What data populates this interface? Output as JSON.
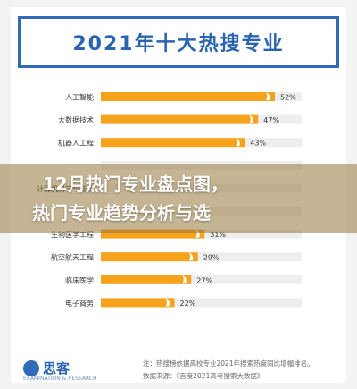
{
  "title": "2021年十大热搜专业",
  "overlay": {
    "line1": "12月热门专业盘点图，",
    "line2": "热门专业趋势分析与选"
  },
  "footer": {
    "logo": "思客",
    "logo_sub": "EXAMINATION & RESEARCH",
    "note1": "注：热搜榜依据高校专业2021年搜索热度同比增幅排名。",
    "note2": "数据来源：《百度2021高考搜索大数据》"
  },
  "colors": {
    "bar": "#f7a21b",
    "bar_light": "#fbcf86",
    "track": "#eeeeee",
    "title": "#2a64b0"
  },
  "chart_data": {
    "type": "bar",
    "orientation": "horizontal",
    "categories": [
      "人工智能",
      "大数据技术",
      "机器人工程",
      "",
      "计算机科学与技术",
      "",
      "生物医学工程",
      "航空航天工程",
      "临床医学",
      "电子商务"
    ],
    "values": [
      52,
      47,
      43,
      null,
      null,
      null,
      31,
      29,
      27,
      22
    ],
    "labels": [
      "52%",
      "47%",
      "43%",
      "",
      "",
      "",
      "31%",
      "29%",
      "27%",
      "22%"
    ],
    "unit": "%",
    "xlim": [
      0,
      60
    ]
  }
}
